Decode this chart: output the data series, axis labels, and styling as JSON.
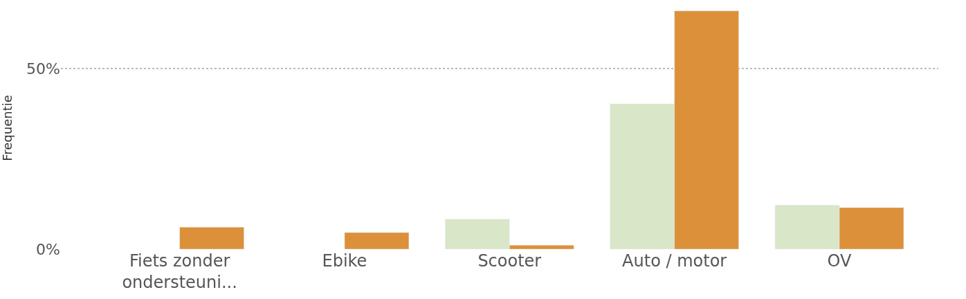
{
  "chart_data": {
    "type": "bar",
    "ylabel": "Frequentie",
    "categories": [
      "Fiets zonder ondersteuni...",
      "Ebike",
      "Scooter",
      "Auto / motor",
      "OV"
    ],
    "series": [
      {
        "color": "#d9e6c8",
        "values": [
          null,
          null,
          8.3,
          40.2,
          12.2
        ]
      },
      {
        "color": "#dc9039",
        "values": [
          6.1,
          4.6,
          1.1,
          65.9,
          11.5
        ]
      }
    ],
    "ylim": [
      0,
      67
    ],
    "yticks": [
      {
        "value": 0,
        "label": "0%"
      },
      {
        "value": 50,
        "label": "50%"
      }
    ],
    "grid": "y"
  }
}
